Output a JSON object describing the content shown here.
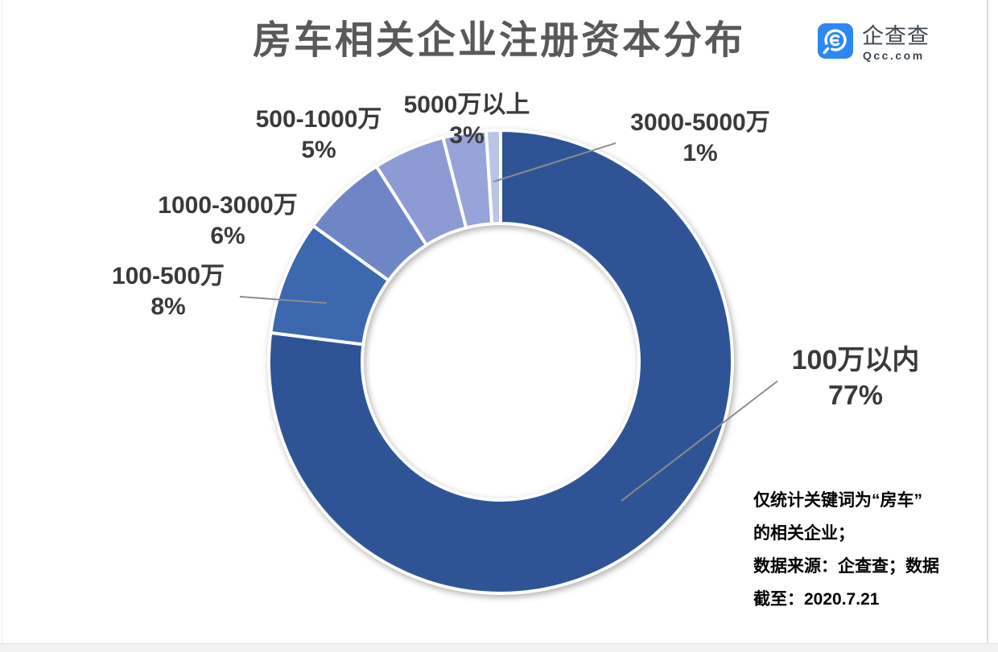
{
  "header": {
    "title": "房车相关企业注册资本分布",
    "title_color": "#595959"
  },
  "brand": {
    "name": "企查查",
    "domain": "Qcc.com",
    "icon_color": "#2c87f2",
    "text_color": "#3d4750"
  },
  "chart_data": {
    "type": "pie",
    "subtype": "donut",
    "title": "房车相关企业注册资本分布",
    "start_angle_deg": 0,
    "direction": "clockwise",
    "inner_radius_ratio": 0.6,
    "categories": [
      "100万以内",
      "100-500万",
      "1000-3000万",
      "500-1000万",
      "5000万以上",
      "3000-5000万"
    ],
    "values": [
      77,
      8,
      6,
      5,
      3,
      1
    ],
    "unit": "%",
    "colors": [
      "#2f5496",
      "#3b68ae",
      "#6f86c6",
      "#8c9bd3",
      "#97a4da",
      "#bac4e8"
    ],
    "slice_border_color": "#ffffff",
    "label_color": "#3a3a3a",
    "leader_line_color": "#8c8c8c",
    "legend": "none",
    "labels": [
      {
        "name": "100万以内",
        "pct": "77%"
      },
      {
        "name": "100-500万",
        "pct": "8%"
      },
      {
        "name": "1000-3000万",
        "pct": "6%"
      },
      {
        "name": "500-1000万",
        "pct": "5%"
      },
      {
        "name": "5000万以上",
        "pct": "3%"
      },
      {
        "name": "3000-5000万",
        "pct": "1%"
      }
    ]
  },
  "footnote": {
    "lines": [
      "仅统计关键词为“房车”",
      "的相关企业；",
      "数据来源：企查查；数据",
      "截至：2020.7.21"
    ],
    "color": "#000000"
  }
}
